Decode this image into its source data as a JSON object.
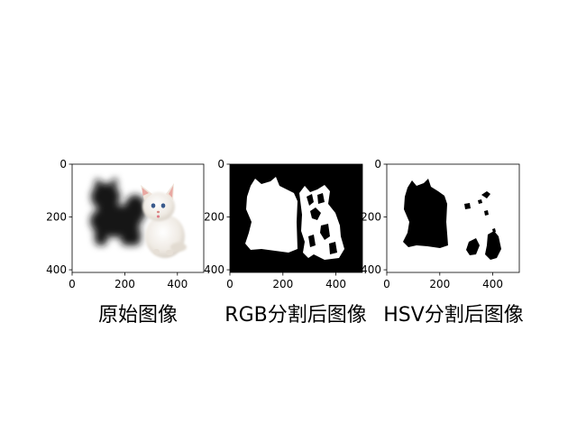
{
  "figure": {
    "background": "#ffffff"
  },
  "chart_data": [
    {
      "type": "image",
      "title": "原始图像",
      "xticks": [
        "0",
        "200",
        "400"
      ],
      "yticks": [
        "0",
        "200",
        "400"
      ],
      "xlim": [
        0,
        500
      ],
      "ylim": [
        410,
        0
      ],
      "content": "photo: shadowed black kitten beside a white kitten on white background"
    },
    {
      "type": "image",
      "title": "RGB分割后图像",
      "xticks": [
        "0",
        "200",
        "400"
      ],
      "yticks": [
        "0",
        "200",
        "400"
      ],
      "xlim": [
        0,
        500
      ],
      "ylim": [
        410,
        0
      ],
      "content": "binary mask: white kitten silhouettes on black background"
    },
    {
      "type": "image",
      "title": "HSV分割后图像",
      "xticks": [
        "0",
        "200",
        "400"
      ],
      "yticks": [
        "0",
        "200",
        "400"
      ],
      "xlim": [
        0,
        500
      ],
      "ylim": [
        410,
        0
      ],
      "content": "binary mask: black kitten silhouettes on white background"
    }
  ]
}
